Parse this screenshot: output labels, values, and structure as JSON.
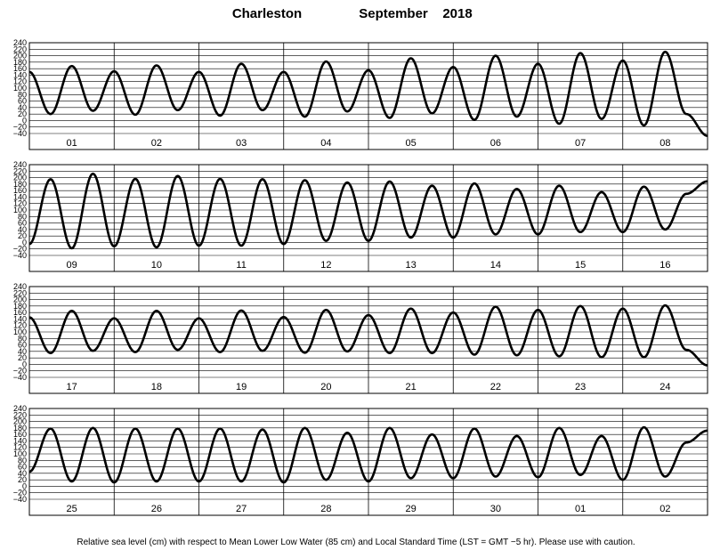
{
  "chart_data": {
    "type": "line",
    "title_location": "Charleston",
    "title_period": "September",
    "title_year": "2018",
    "footnote": "Relative sea level (cm) with respect to Mean Lower Low Water (85 cm) and Local Standard Time (LST = GMT −5 hr). Please use with caution.",
    "y_ticks": [
      "240",
      "220",
      "200",
      "180",
      "160",
      "140",
      "120",
      "100",
      "80",
      "60",
      "40",
      "20",
      "0",
      "−20",
      "−40"
    ],
    "ylim": [
      -40,
      240
    ],
    "grid": true,
    "panels": [
      {
        "days": [
          "01",
          "02",
          "03",
          "04",
          "05",
          "06",
          "07",
          "08"
        ],
        "points": [
          [
            0.0,
            150
          ],
          [
            0.25,
            20
          ],
          [
            0.5,
            168
          ],
          [
            0.75,
            30
          ],
          [
            1.0,
            152
          ],
          [
            1.25,
            18
          ],
          [
            1.5,
            170
          ],
          [
            1.75,
            32
          ],
          [
            2.0,
            150
          ],
          [
            2.25,
            15
          ],
          [
            2.5,
            175
          ],
          [
            2.75,
            32
          ],
          [
            3.0,
            150
          ],
          [
            3.25,
            12
          ],
          [
            3.5,
            182
          ],
          [
            3.75,
            28
          ],
          [
            4.0,
            155
          ],
          [
            4.25,
            8
          ],
          [
            4.5,
            192
          ],
          [
            4.75,
            22
          ],
          [
            5.0,
            165
          ],
          [
            5.25,
            2
          ],
          [
            5.5,
            200
          ],
          [
            5.75,
            12
          ],
          [
            6.0,
            175
          ],
          [
            6.25,
            -10
          ],
          [
            6.5,
            208
          ],
          [
            6.75,
            5
          ],
          [
            7.0,
            185
          ],
          [
            7.25,
            -15
          ],
          [
            7.5,
            212
          ],
          [
            7.75,
            20
          ]
        ]
      },
      {
        "days": [
          "09",
          "10",
          "11",
          "12",
          "13",
          "14",
          "15",
          "16"
        ],
        "points": [
          [
            0.0,
            -5
          ],
          [
            0.25,
            195
          ],
          [
            0.5,
            -18
          ],
          [
            0.75,
            212
          ],
          [
            1.0,
            -12
          ],
          [
            1.25,
            196
          ],
          [
            1.5,
            -15
          ],
          [
            1.75,
            205
          ],
          [
            2.0,
            -10
          ],
          [
            2.25,
            196
          ],
          [
            2.5,
            -10
          ],
          [
            2.75,
            195
          ],
          [
            3.0,
            -5
          ],
          [
            3.25,
            192
          ],
          [
            3.5,
            5
          ],
          [
            3.75,
            185
          ],
          [
            4.0,
            5
          ],
          [
            4.25,
            188
          ],
          [
            4.5,
            15
          ],
          [
            4.75,
            175
          ],
          [
            5.0,
            15
          ],
          [
            5.25,
            182
          ],
          [
            5.5,
            25
          ],
          [
            5.75,
            165
          ],
          [
            6.0,
            25
          ],
          [
            6.25,
            175
          ],
          [
            6.5,
            32
          ],
          [
            6.75,
            155
          ],
          [
            7.0,
            32
          ],
          [
            7.25,
            172
          ],
          [
            7.5,
            40
          ],
          [
            7.75,
            150
          ]
        ]
      },
      {
        "days": [
          "17",
          "18",
          "19",
          "20",
          "21",
          "22",
          "23",
          "24"
        ],
        "points": [
          [
            0.0,
            145
          ],
          [
            0.25,
            35
          ],
          [
            0.5,
            165
          ],
          [
            0.75,
            42
          ],
          [
            1.0,
            142
          ],
          [
            1.25,
            38
          ],
          [
            1.5,
            165
          ],
          [
            1.75,
            45
          ],
          [
            2.0,
            142
          ],
          [
            2.25,
            38
          ],
          [
            2.5,
            166
          ],
          [
            2.75,
            42
          ],
          [
            3.0,
            146
          ],
          [
            3.25,
            36
          ],
          [
            3.5,
            168
          ],
          [
            3.75,
            40
          ],
          [
            4.0,
            152
          ],
          [
            4.25,
            35
          ],
          [
            4.5,
            172
          ],
          [
            4.75,
            35
          ],
          [
            5.0,
            160
          ],
          [
            5.25,
            30
          ],
          [
            5.5,
            178
          ],
          [
            5.75,
            28
          ],
          [
            6.0,
            168
          ],
          [
            6.25,
            25
          ],
          [
            6.5,
            180
          ],
          [
            6.75,
            22
          ],
          [
            7.0,
            172
          ],
          [
            7.25,
            22
          ],
          [
            7.5,
            182
          ],
          [
            7.75,
            45
          ]
        ]
      },
      {
        "days": [
          "25",
          "26",
          "27",
          "28",
          "29",
          "30",
          "01",
          "02"
        ],
        "points": [
          [
            0.0,
            45
          ],
          [
            0.25,
            178
          ],
          [
            0.5,
            15
          ],
          [
            0.75,
            180
          ],
          [
            1.0,
            12
          ],
          [
            1.25,
            178
          ],
          [
            1.5,
            15
          ],
          [
            1.75,
            178
          ],
          [
            2.0,
            15
          ],
          [
            2.25,
            178
          ],
          [
            2.5,
            15
          ],
          [
            2.75,
            175
          ],
          [
            3.0,
            12
          ],
          [
            3.25,
            180
          ],
          [
            3.5,
            20
          ],
          [
            3.75,
            165
          ],
          [
            4.0,
            15
          ],
          [
            4.25,
            180
          ],
          [
            4.5,
            25
          ],
          [
            4.75,
            160
          ],
          [
            5.0,
            25
          ],
          [
            5.25,
            178
          ],
          [
            5.5,
            30
          ],
          [
            5.75,
            155
          ],
          [
            6.0,
            28
          ],
          [
            6.25,
            180
          ],
          [
            6.5,
            35
          ],
          [
            6.75,
            155
          ],
          [
            7.0,
            20
          ],
          [
            7.25,
            182
          ],
          [
            7.5,
            30
          ],
          [
            7.75,
            135
          ]
        ]
      }
    ]
  }
}
